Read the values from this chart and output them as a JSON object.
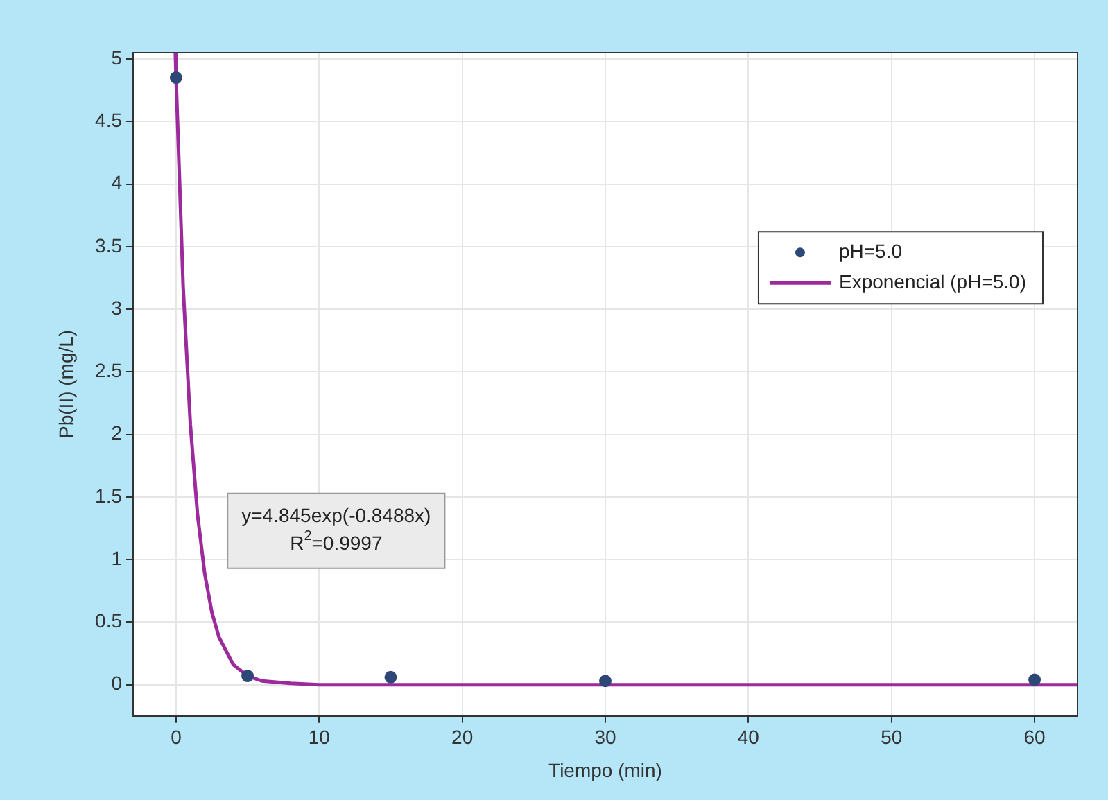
{
  "chart_data": {
    "type": "scatter",
    "xlabel": "Tiempo (min)",
    "ylabel": "Pb(II) (mg/L)",
    "xlim": [
      -3,
      63
    ],
    "xticks": [
      0,
      10,
      20,
      30,
      40,
      50,
      60
    ],
    "ylim": [
      -0.25,
      5.05
    ],
    "yticks": [
      0,
      0.5,
      1,
      1.5,
      2,
      2.5,
      3,
      3.5,
      4,
      4.5,
      5
    ],
    "grid": true,
    "legend": "right",
    "marker": "circle",
    "series": [
      {
        "name": "pH=5.0",
        "type": "scatter",
        "color": "#2d4777",
        "x": [
          0,
          5,
          15,
          30,
          60
        ],
        "values": [
          4.85,
          0.07,
          0.06,
          0.03,
          0.04
        ]
      },
      {
        "name": "Exponencial (pH=5.0)",
        "type": "line",
        "line_style": "solid",
        "marker": "none",
        "color": "#9c2a9c",
        "x": [
          -0.05,
          0,
          0.5,
          1,
          1.5,
          2,
          2.5,
          3,
          4,
          5,
          6,
          8,
          10,
          20,
          40,
          63
        ],
        "values": [
          5.05,
          4.85,
          3.17,
          2.08,
          1.36,
          0.89,
          0.58,
          0.38,
          0.16,
          0.07,
          0.03,
          0.01,
          0,
          0,
          0,
          0
        ]
      }
    ],
    "annotations": [
      "y=4.845exp(-0.8488x)\nR$^{2}$=0.9997"
    ]
  }
}
